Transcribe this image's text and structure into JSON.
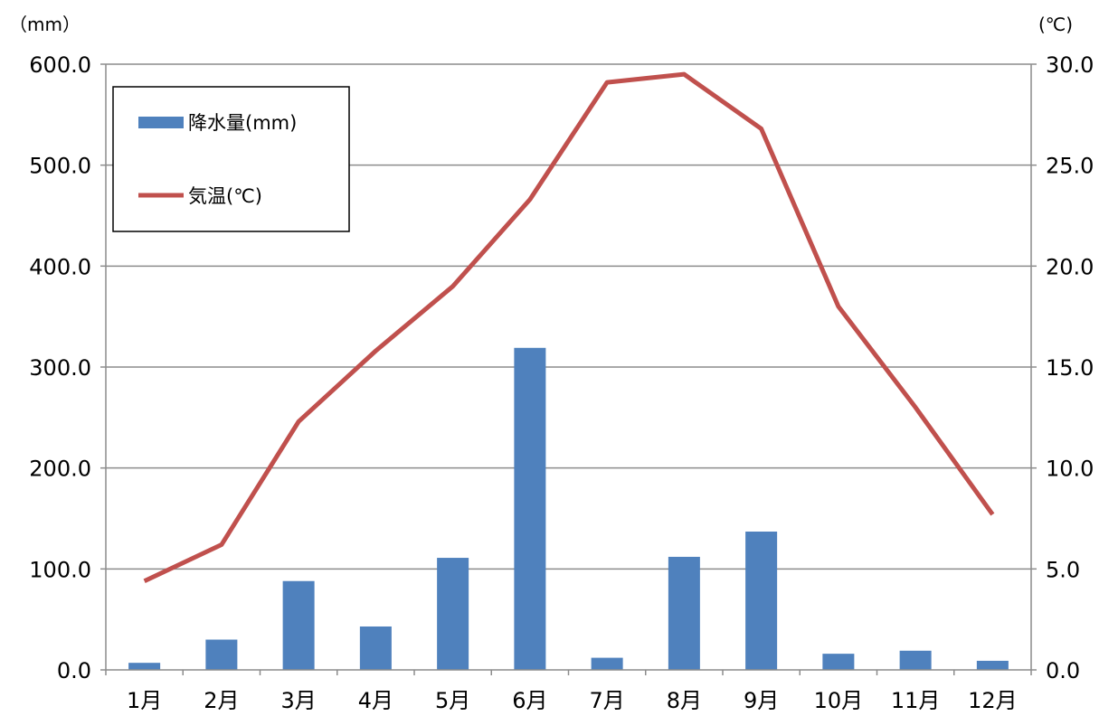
{
  "chart_data": {
    "type": "bar+line",
    "left_axis": {
      "unit_label": "（mm）",
      "range": [
        0,
        600
      ],
      "ticks": [
        "0.0",
        "100.0",
        "200.0",
        "300.0",
        "400.0",
        "500.0",
        "600.0"
      ]
    },
    "right_axis": {
      "unit_label": "(℃)",
      "range": [
        0,
        30
      ],
      "ticks": [
        "0.0",
        "5.0",
        "10.0",
        "15.0",
        "20.0",
        "25.0",
        "30.0"
      ]
    },
    "categories": [
      "1月",
      "2月",
      "3月",
      "4月",
      "5月",
      "6月",
      "7月",
      "8月",
      "9月",
      "10月",
      "11月",
      "12月"
    ],
    "series": [
      {
        "name": "降水量(mm)",
        "kind": "bar",
        "axis": "left",
        "color": "#4F81BD",
        "values": [
          7,
          30,
          88,
          43,
          111,
          319,
          12,
          112,
          137,
          16,
          19,
          9
        ]
      },
      {
        "name": "気温(℃)",
        "kind": "line",
        "axis": "right",
        "color": "#C0504D",
        "values": [
          4.4,
          6.2,
          12.3,
          15.8,
          19.0,
          23.3,
          29.1,
          29.5,
          26.8,
          18.0,
          13.0,
          7.7
        ]
      }
    ],
    "grid": true,
    "legend_position": "top-left"
  }
}
